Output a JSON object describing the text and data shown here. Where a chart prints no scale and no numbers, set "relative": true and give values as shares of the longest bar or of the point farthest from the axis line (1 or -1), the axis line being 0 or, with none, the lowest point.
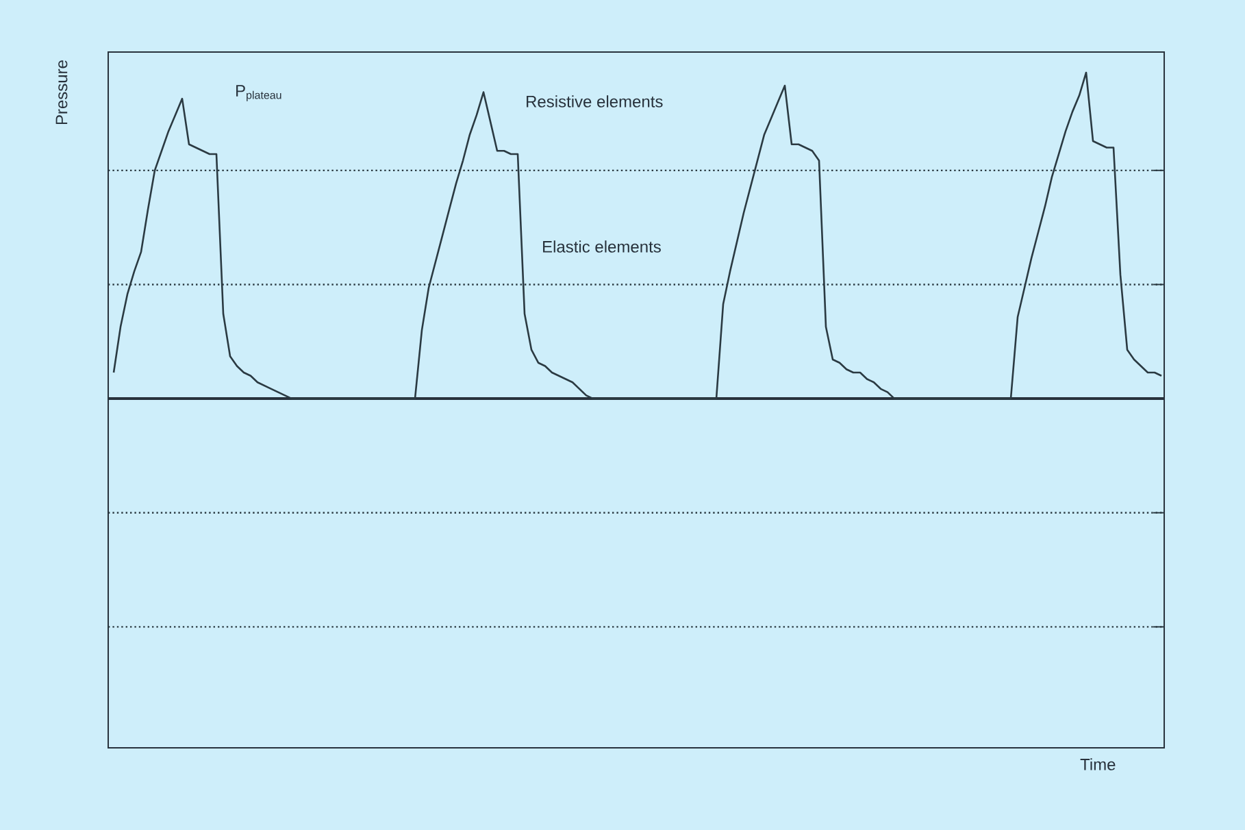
{
  "chart_data": {
    "type": "line",
    "relative": true,
    "ylabel": "Pressure",
    "color": "#2b3a42",
    "line_style": "solid",
    "annotations": [
      "P$_{plateau}$",
      "Resistive elements",
      "Elastic elements",
      "Time"
    ],
    "ref_lines": [
      {
        "axis": "y",
        "value": 0.7,
        "line_style": "dotted",
        "color": "#2b3a42"
      },
      {
        "axis": "y",
        "value": 0.35,
        "line_style": "dotted",
        "color": "#2b3a42"
      },
      {
        "axis": "y",
        "value": -0.35,
        "line_style": "dotted",
        "color": "#2b3a42"
      },
      {
        "axis": "y",
        "value": -0.7,
        "line_style": "dotted",
        "color": "#2b3a42"
      }
    ],
    "categories": [
      null,
      null,
      null,
      null,
      null,
      null,
      null,
      null,
      null,
      null,
      null,
      null,
      null,
      null,
      null,
      null,
      null,
      null,
      null,
      null,
      null,
      null,
      null,
      null,
      null,
      null,
      null,
      null,
      null,
      null,
      null,
      null,
      null,
      null,
      null,
      null,
      null,
      null,
      null,
      null,
      null,
      null,
      null,
      null,
      null,
      null,
      null,
      null,
      null,
      null,
      null,
      null,
      null,
      null,
      null,
      null,
      null,
      null,
      null,
      null,
      null,
      null,
      null,
      null,
      null,
      null,
      null,
      null,
      null,
      null,
      null,
      null,
      null,
      null,
      null,
      null,
      null,
      null,
      null,
      null,
      null,
      null,
      null,
      null,
      null,
      null,
      null,
      null,
      null,
      null,
      null,
      null,
      null,
      null,
      null,
      null,
      null,
      null,
      null,
      null,
      null,
      null,
      null,
      null,
      null,
      null,
      null,
      null,
      null,
      null,
      null,
      null,
      null,
      null,
      null,
      null,
      null,
      null,
      null,
      null,
      null,
      null,
      null,
      null,
      null,
      null,
      null,
      null,
      null,
      null,
      null,
      null,
      null,
      null,
      null,
      null,
      null,
      null,
      null,
      null,
      null,
      null,
      null,
      null,
      null,
      null,
      null,
      null,
      null,
      null,
      null,
      null,
      null,
      null
    ],
    "values": [
      0.08,
      0.22,
      0.32,
      0.39,
      0.45,
      0.58,
      0.7,
      0.76,
      0.82,
      0.87,
      0.92,
      0.78,
      0.77,
      0.76,
      0.75,
      0.75,
      0.26,
      0.13,
      0.1,
      0.08,
      0.07,
      0.05,
      0.04,
      0.03,
      0.02,
      0.01,
      0,
      0,
      0,
      0,
      0,
      0,
      0,
      0,
      0,
      0,
      0,
      0,
      0,
      0,
      0,
      0,
      0,
      0,
      0,
      0.21,
      0.34,
      0.42,
      0.5,
      0.58,
      0.66,
      0.73,
      0.81,
      0.87,
      0.94,
      0.85,
      0.76,
      0.76,
      0.75,
      0.75,
      0.26,
      0.15,
      0.11,
      0.1,
      0.08,
      0.07,
      0.06,
      0.05,
      0.03,
      0.01,
      0,
      0,
      0,
      0,
      0,
      0,
      0,
      0,
      0,
      0,
      0,
      0,
      0,
      0,
      0,
      0,
      0,
      0,
      0,
      0.29,
      0.39,
      0.48,
      0.57,
      0.65,
      0.73,
      0.81,
      0.86,
      0.91,
      0.96,
      0.78,
      0.78,
      0.77,
      0.76,
      0.73,
      0.22,
      0.12,
      0.11,
      0.09,
      0.08,
      0.08,
      0.06,
      0.05,
      0.03,
      0.02,
      0,
      0,
      0,
      0,
      0,
      0,
      0,
      0,
      0,
      0,
      0,
      0,
      0,
      0,
      0,
      0,
      0,
      0,
      0.25,
      0.34,
      0.43,
      0.51,
      0.59,
      0.68,
      0.75,
      0.82,
      0.88,
      0.93,
      1,
      0.79,
      0.78,
      0.77,
      0.77,
      0.38,
      0.15,
      0.12,
      0.1,
      0.08,
      0.08,
      0.07
    ]
  }
}
